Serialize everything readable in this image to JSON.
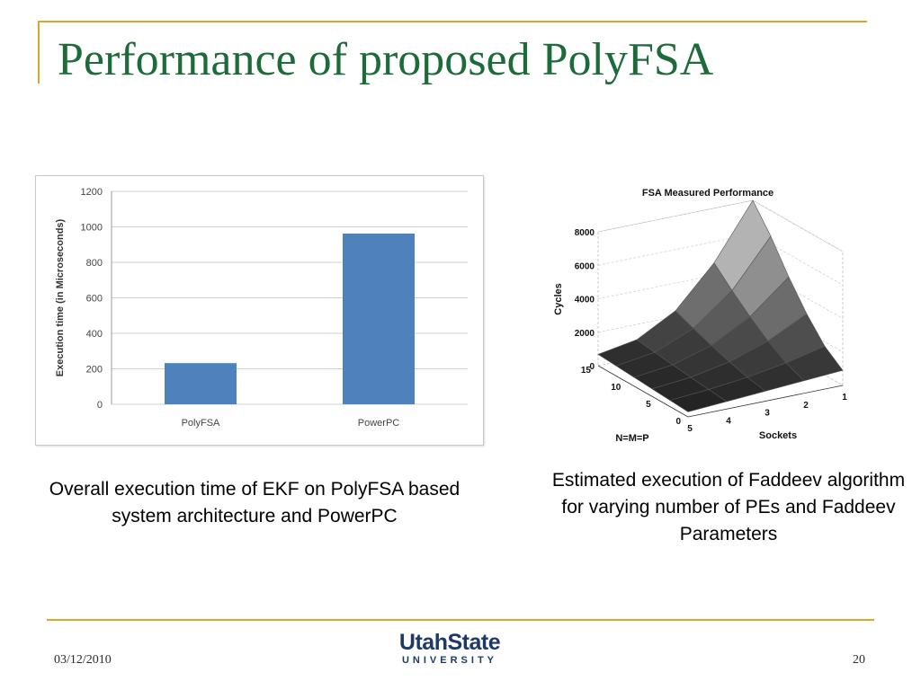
{
  "slide": {
    "title": "Performance of proposed PolyFSA",
    "caption_left": "Overall execution time of EKF on PolyFSA based system architecture and PowerPC",
    "caption_right": "Estimated execution of Faddeev algorithm for varying number of PEs and Faddeev Parameters",
    "date": "03/12/2010",
    "page_number": "20",
    "logo_line1": "UtahState",
    "logo_line2": "UNIVERSITY"
  },
  "colors": {
    "title": "#1e6b3a",
    "accent_rule": "#d9a828",
    "bar": "#4f81bd",
    "logo": "#1d3a66"
  },
  "chart_data": [
    {
      "type": "bar",
      "categories": [
        "PolyFSA",
        "PowerPC"
      ],
      "values": [
        232,
        962
      ],
      "title": "",
      "xlabel": "",
      "ylabel": "Execution time (in Microseconds)",
      "ylim": [
        0,
        1200
      ],
      "yticks": [
        0,
        200,
        400,
        600,
        800,
        1000,
        1200
      ],
      "grid": true
    },
    {
      "type": "surface",
      "title": "FSA Measured Performance",
      "xlabel": "Sockets",
      "ylabel": "N=M=P",
      "zlabel": "Cycles",
      "x_ticks": [
        1,
        2,
        3,
        4,
        5
      ],
      "y_ticks": [
        0,
        5,
        10,
        15
      ],
      "z_ticks": [
        0,
        2000,
        4000,
        6000,
        8000
      ],
      "zlim": [
        0,
        8000
      ]
    }
  ]
}
